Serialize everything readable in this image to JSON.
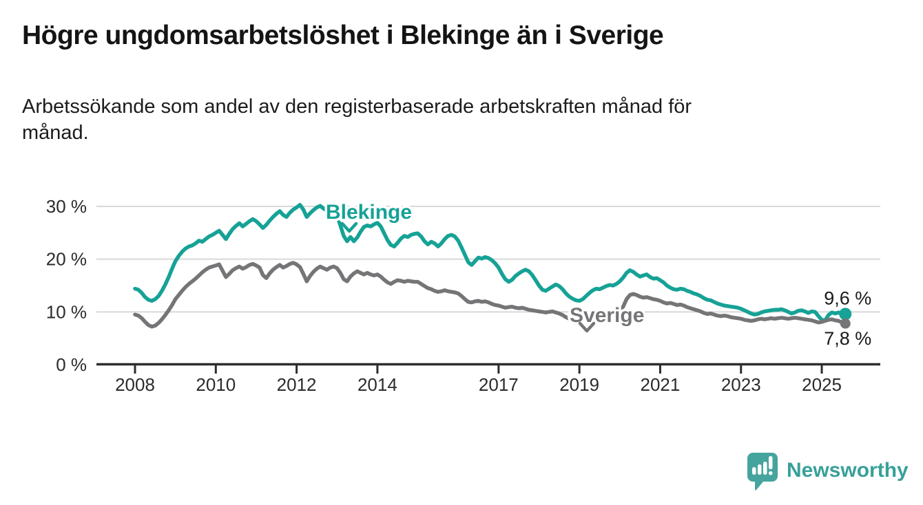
{
  "title": "Högre ungdomsarbetslöshet i Blekinge än i Sverige",
  "subtitle": {
    "lines": [
      "Arbetssökande som andel av den registerbaserade arbetskraften månad för",
      "månad."
    ]
  },
  "colors": {
    "blekinge": "#16a296",
    "sverige": "#757578",
    "grid": "#d8d8d8",
    "axis": "#2d2d2d",
    "tick_text": "#2b2b2b",
    "value_text": "#1a1a1a",
    "logo_bubble": "#46a49e",
    "logo_text": "#38a099",
    "background": "#ffffff"
  },
  "logo": {
    "text": "Newsworthy",
    "icon": "newsworthy-speech-bubble-bar-chart-icon"
  },
  "chart_data": {
    "type": "line",
    "unit": "%",
    "x_axis": {
      "ticks": [
        2008,
        2010,
        2012,
        2014,
        2017,
        2019,
        2021,
        2023,
        2025
      ],
      "tick_labels": [
        "2008",
        "2010",
        "2012",
        "2014",
        "2017",
        "2019",
        "2021",
        "2023",
        "2025"
      ],
      "xlim": [
        2007.9,
        2026.4
      ]
    },
    "y_axis": {
      "ticks": [
        0,
        10,
        20,
        30
      ],
      "tick_labels": [
        "0 %",
        "10 %",
        "20 %",
        "30 %"
      ],
      "ylim": [
        0,
        32
      ],
      "grid": true
    },
    "series_start_year": 2008.0,
    "series_step_years": 0.0833333,
    "series": [
      {
        "name": "Blekinge",
        "label": "Blekinge",
        "end_label": "9,6 %",
        "end_value": 9.6,
        "color": "#16a296",
        "values": [
          14.4,
          14.2,
          13.6,
          12.8,
          12.3,
          12.1,
          12.4,
          13.0,
          14.0,
          15.2,
          16.6,
          18.2,
          19.6,
          20.6,
          21.4,
          22.0,
          22.4,
          22.6,
          23.0,
          23.5,
          23.3,
          23.8,
          24.3,
          24.6,
          25.0,
          25.4,
          24.6,
          23.8,
          24.8,
          25.7,
          26.3,
          26.8,
          26.2,
          26.7,
          27.2,
          27.6,
          27.2,
          26.6,
          25.9,
          26.5,
          27.3,
          28.0,
          28.6,
          29.1,
          28.4,
          28.0,
          28.8,
          29.4,
          29.8,
          30.3,
          29.4,
          28.0,
          28.7,
          29.3,
          29.8,
          30.1,
          29.6,
          29.2,
          29.6,
          29.9,
          28.4,
          26.4,
          24.4,
          23.4,
          24.2,
          23.4,
          24.1,
          25.2,
          26.1,
          26.4,
          26.2,
          26.6,
          26.9,
          26.2,
          24.9,
          23.6,
          22.7,
          22.4,
          23.1,
          23.9,
          24.4,
          24.2,
          24.6,
          24.8,
          24.9,
          24.3,
          23.4,
          22.8,
          23.3,
          23.0,
          22.4,
          23.0,
          23.8,
          24.4,
          24.6,
          24.3,
          23.5,
          22.2,
          20.8,
          19.4,
          18.9,
          19.6,
          20.3,
          20.1,
          20.4,
          20.2,
          19.8,
          19.2,
          18.4,
          17.2,
          16.2,
          15.7,
          16.1,
          16.8,
          17.3,
          17.7,
          18.0,
          17.7,
          17.0,
          16.0,
          15.0,
          14.2,
          14.0,
          14.4,
          14.8,
          15.2,
          14.9,
          14.3,
          13.5,
          12.9,
          12.5,
          12.2,
          12.1,
          12.4,
          13.0,
          13.6,
          14.1,
          14.4,
          14.3,
          14.6,
          14.9,
          15.1,
          15.0,
          15.3,
          15.8,
          16.5,
          17.4,
          17.9,
          17.6,
          17.1,
          16.7,
          16.9,
          17.1,
          16.6,
          16.3,
          16.4,
          16.0,
          15.6,
          15.0,
          14.6,
          14.3,
          14.2,
          14.4,
          14.3,
          14.0,
          13.8,
          13.5,
          13.3,
          13.0,
          12.6,
          12.3,
          12.2,
          11.9,
          11.6,
          11.4,
          11.2,
          11.1,
          11.0,
          10.9,
          10.8,
          10.6,
          10.3,
          10.0,
          9.7,
          9.5,
          9.6,
          9.9,
          10.1,
          10.2,
          10.3,
          10.4,
          10.4,
          10.5,
          10.3,
          10.0,
          9.7,
          9.9,
          10.2,
          10.3,
          10.1,
          9.8,
          10.1,
          10.0,
          9.2,
          8.5,
          8.4,
          9.4,
          9.9,
          9.7,
          9.9,
          9.5,
          9.6
        ]
      },
      {
        "name": "Sverige",
        "label": "Sverige",
        "end_label": "7,8 %",
        "end_value": 7.8,
        "color": "#757578",
        "values": [
          9.5,
          9.3,
          8.8,
          8.1,
          7.5,
          7.2,
          7.4,
          7.9,
          8.6,
          9.4,
          10.3,
          11.3,
          12.4,
          13.2,
          14.0,
          14.7,
          15.3,
          15.8,
          16.3,
          16.9,
          17.5,
          18.0,
          18.4,
          18.6,
          18.8,
          19.0,
          17.8,
          16.6,
          17.2,
          17.9,
          18.3,
          18.6,
          18.2,
          18.5,
          18.9,
          19.1,
          18.8,
          18.4,
          17.0,
          16.4,
          17.3,
          18.0,
          18.5,
          18.9,
          18.4,
          18.7,
          19.1,
          19.3,
          19.0,
          18.5,
          17.2,
          15.8,
          16.8,
          17.6,
          18.2,
          18.6,
          18.3,
          18.0,
          18.4,
          18.6,
          18.3,
          17.4,
          16.2,
          15.8,
          16.7,
          17.3,
          17.7,
          17.4,
          17.1,
          17.4,
          17.1,
          16.9,
          17.1,
          16.7,
          16.1,
          15.6,
          15.3,
          15.7,
          16.0,
          15.9,
          15.7,
          15.9,
          15.8,
          15.7,
          15.7,
          15.3,
          14.9,
          14.5,
          14.3,
          14.0,
          13.8,
          13.9,
          14.1,
          13.9,
          13.8,
          13.7,
          13.5,
          13.0,
          12.4,
          11.9,
          11.8,
          12.0,
          12.1,
          11.9,
          12.0,
          11.8,
          11.5,
          11.3,
          11.2,
          11.0,
          10.8,
          10.9,
          11.0,
          10.8,
          10.7,
          10.8,
          10.6,
          10.4,
          10.3,
          10.2,
          10.1,
          10.0,
          9.9,
          10.0,
          10.1,
          9.9,
          9.7,
          9.4,
          9.0,
          8.7,
          8.5,
          8.5,
          8.6,
          8.7,
          8.9,
          9.1,
          9.3,
          9.4,
          9.5,
          9.6,
          9.7,
          9.8,
          9.9,
          10.0,
          10.3,
          11.0,
          12.4,
          13.2,
          13.4,
          13.2,
          12.9,
          12.7,
          12.8,
          12.6,
          12.4,
          12.3,
          12.1,
          11.8,
          11.6,
          11.7,
          11.5,
          11.3,
          11.4,
          11.2,
          10.9,
          10.7,
          10.5,
          10.3,
          10.1,
          9.8,
          9.6,
          9.7,
          9.5,
          9.3,
          9.2,
          9.3,
          9.2,
          9.0,
          8.9,
          8.8,
          8.7,
          8.5,
          8.4,
          8.3,
          8.4,
          8.6,
          8.7,
          8.6,
          8.7,
          8.8,
          8.7,
          8.8,
          8.9,
          8.8,
          8.7,
          8.8,
          8.9,
          8.8,
          8.7,
          8.6,
          8.5,
          8.4,
          8.2,
          8.0,
          8.1,
          8.3,
          8.5,
          8.6,
          8.4,
          8.3,
          8.0,
          7.8
        ]
      }
    ]
  }
}
